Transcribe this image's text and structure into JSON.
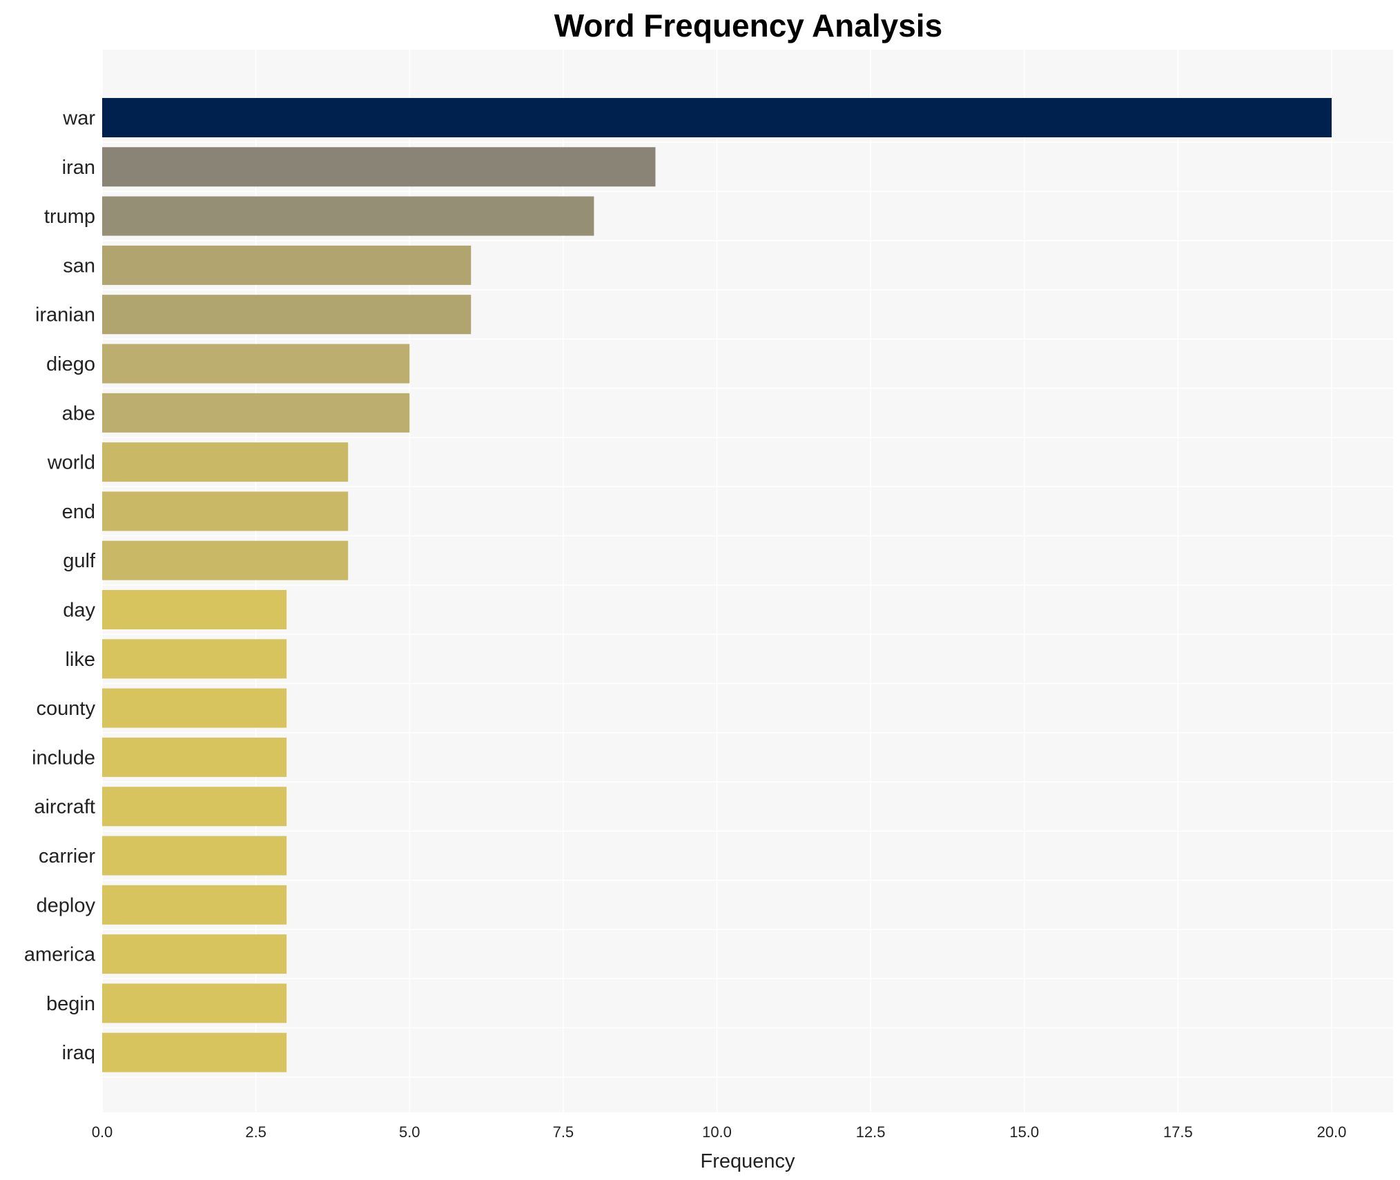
{
  "chart_data": {
    "type": "bar",
    "orientation": "horizontal",
    "title": "Word Frequency Analysis",
    "xlabel": "Frequency",
    "ylabel": "",
    "xlim": [
      0,
      21
    ],
    "xticks": [
      "0.0",
      "2.5",
      "5.0",
      "7.5",
      "10.0",
      "12.5",
      "15.0",
      "17.5",
      "20.0"
    ],
    "grid": true,
    "categories": [
      "war",
      "iran",
      "trump",
      "san",
      "iranian",
      "diego",
      "abe",
      "world",
      "end",
      "gulf",
      "day",
      "like",
      "county",
      "include",
      "aircraft",
      "carrier",
      "deploy",
      "america",
      "begin",
      "iraq"
    ],
    "values": [
      20,
      9,
      8,
      6,
      6,
      5,
      5,
      4,
      4,
      4,
      3,
      3,
      3,
      3,
      3,
      3,
      3,
      3,
      3,
      3
    ],
    "colors": [
      "#00214e",
      "#898476",
      "#958f76",
      "#b0a46f",
      "#b0a46f",
      "#bcae6e",
      "#bcae6e",
      "#c9b966",
      "#c9b966",
      "#c9b966",
      "#d8c45f",
      "#d8c45f",
      "#d8c45f",
      "#d8c45f",
      "#d8c45f",
      "#d8c45f",
      "#d8c45f",
      "#d8c45f",
      "#d8c45f",
      "#d8c45f"
    ],
    "plot_background": "#f7f7f7"
  }
}
